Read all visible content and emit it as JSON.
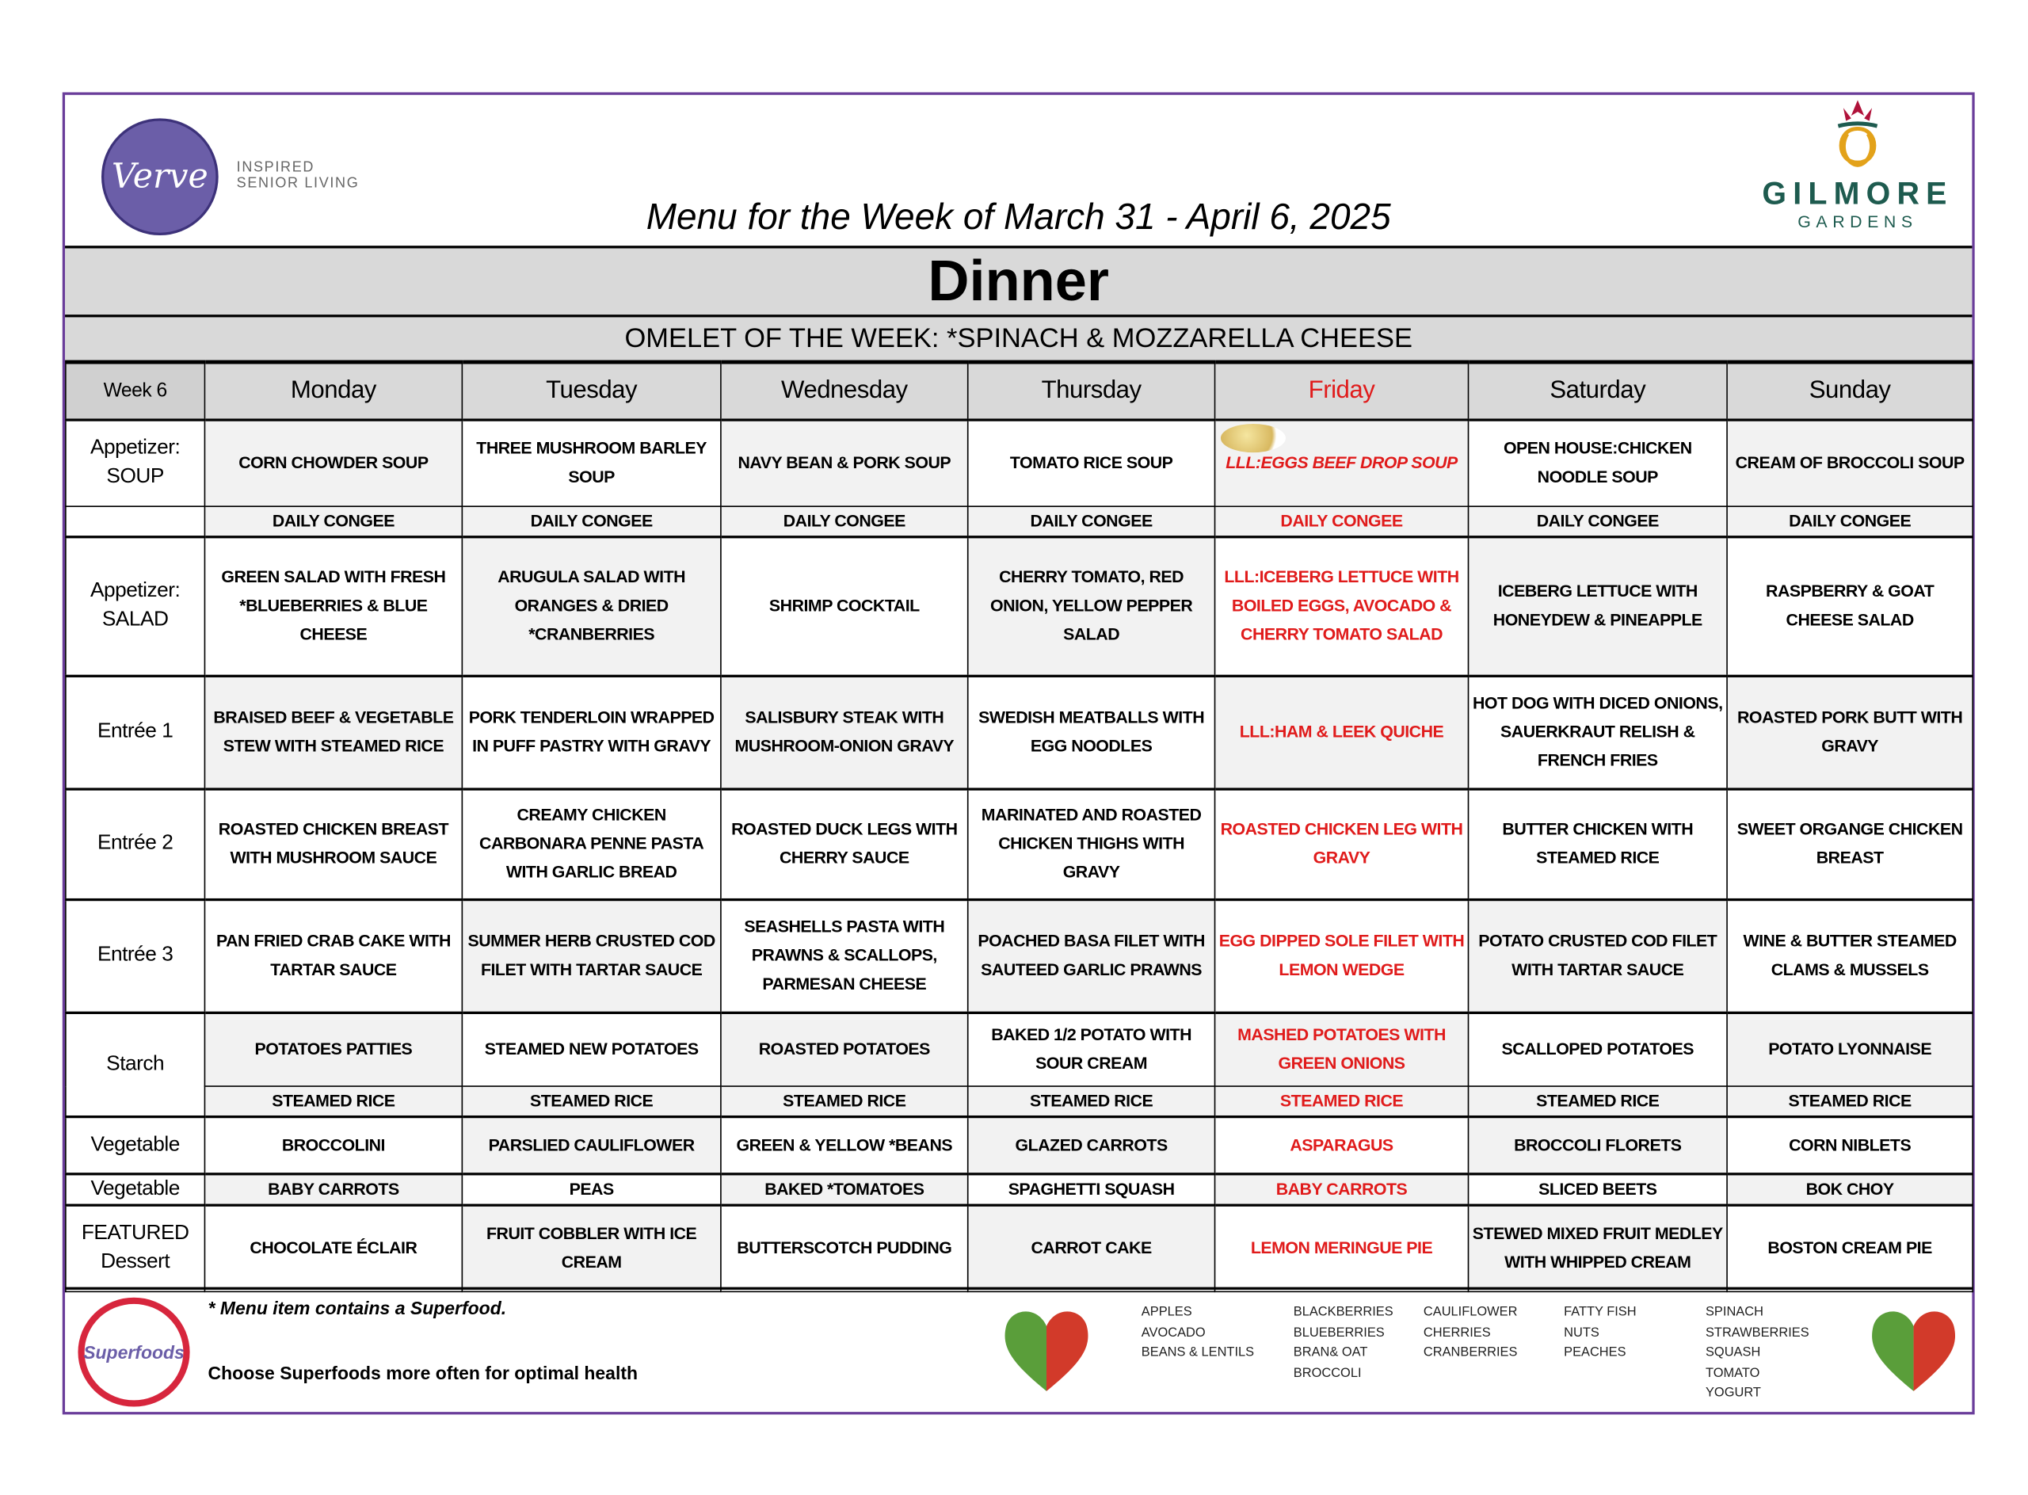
{
  "header": {
    "left_logo": "Verve",
    "left_tagline_1": "INSPIRED",
    "left_tagline_2": "SENIOR LIVING",
    "title": "Menu for the Week of March 31 - April 6, 2025",
    "right_logo_1": "GILMORE",
    "right_logo_2": "GARDENS"
  },
  "meal": "Dinner",
  "omelet": "OMELET OF THE WEEK: *SPINACH & MOZZARELLA CHEESE",
  "colors": {
    "border": "#6a3d9a",
    "highlight": "#e01b1b",
    "header_bg": "#d9d9d9"
  },
  "week_label": "Week 6",
  "days": [
    "Monday",
    "Tuesday",
    "Wednesday",
    "Thursday",
    "Friday",
    "Saturday",
    "Sunday"
  ],
  "highlight_day": "Friday",
  "rows": [
    {
      "label": "Appetizer: SOUP",
      "cells": [
        "CORN CHOWDER SOUP",
        "THREE MUSHROOM BARLEY SOUP",
        "NAVY BEAN & PORK SOUP",
        "TOMATO RICE SOUP",
        "LLL:EGGS BEEF DROP SOUP",
        "OPEN HOUSE:CHICKEN NOODLE SOUP",
        "CREAM OF BROCCOLI SOUP"
      ]
    },
    {
      "label": "",
      "cells": [
        "DAILY CONGEE",
        "DAILY CONGEE",
        "DAILY CONGEE",
        "DAILY CONGEE",
        "DAILY CONGEE",
        "DAILY CONGEE",
        "DAILY CONGEE"
      ]
    },
    {
      "label": "Appetizer: SALAD",
      "cells": [
        "GREEN SALAD WITH FRESH *BLUEBERRIES & BLUE CHEESE",
        "ARUGULA SALAD WITH ORANGES & DRIED *CRANBERRIES",
        "SHRIMP COCKTAIL",
        "CHERRY TOMATO, RED ONION, YELLOW PEPPER SALAD",
        "LLL:ICEBERG LETTUCE WITH BOILED EGGS, AVOCADO & CHERRY TOMATO SALAD",
        "ICEBERG LETTUCE WITH HONEYDEW & PINEAPPLE",
        "RASPBERRY & GOAT CHEESE SALAD"
      ]
    },
    {
      "label": "Entrée 1",
      "cells": [
        "BRAISED BEEF & VEGETABLE STEW WITH STEAMED RICE",
        "PORK TENDERLOIN WRAPPED IN PUFF PASTRY WITH GRAVY",
        "SALISBURY STEAK WITH MUSHROOM-ONION GRAVY",
        "SWEDISH MEATBALLS WITH EGG NOODLES",
        "LLL:HAM & LEEK QUICHE",
        "HOT DOG WITH DICED ONIONS, SAUERKRAUT RELISH & FRENCH FRIES",
        "ROASTED PORK BUTT WITH GRAVY"
      ]
    },
    {
      "label": "Entrée 2",
      "cells": [
        "ROASTED CHICKEN BREAST WITH MUSHROOM SAUCE",
        "CREAMY CHICKEN CARBONARA PENNE PASTA WITH GARLIC BREAD",
        "ROASTED DUCK LEGS WITH CHERRY SAUCE",
        "MARINATED AND ROASTED CHICKEN THIGHS WITH GRAVY",
        "ROASTED CHICKEN LEG WITH GRAVY",
        "BUTTER CHICKEN WITH STEAMED RICE",
        "SWEET ORGANGE CHICKEN BREAST"
      ]
    },
    {
      "label": "Entrée 3",
      "cells": [
        "PAN FRIED CRAB CAKE WITH TARTAR SAUCE",
        "SUMMER HERB CRUSTED COD FILET WITH TARTAR SAUCE",
        "SEASHELLS PASTA WITH PRAWNS & SCALLOPS, PARMESAN CHEESE",
        "POACHED BASA FILET WITH SAUTEED GARLIC PRAWNS",
        "EGG DIPPED SOLE FILET WITH LEMON WEDGE",
        "POTATO CRUSTED COD FILET WITH TARTAR SAUCE",
        "WINE & BUTTER STEAMED CLAMS & MUSSELS"
      ]
    },
    {
      "label": "Starch",
      "cells": [
        "POTATOES PATTIES",
        "STEAMED NEW POTATOES",
        "ROASTED  POTATOES",
        "BAKED 1/2 POTATO WITH SOUR CREAM",
        "MASHED POTATOES WITH GREEN ONIONS",
        "SCALLOPED POTATOES",
        "POTATO LYONNAISE"
      ]
    },
    {
      "label": "",
      "cells": [
        "STEAMED RICE",
        "STEAMED RICE",
        "STEAMED RICE",
        "STEAMED RICE",
        "STEAMED RICE",
        "STEAMED RICE",
        "STEAMED RICE"
      ]
    },
    {
      "label": "Vegetable",
      "cells": [
        "BROCCOLINI",
        "PARSLIED CAULIFLOWER",
        "GREEN & YELLOW *BEANS",
        "GLAZED CARROTS",
        "ASPARAGUS",
        "BROCCOLI FLORETS",
        "CORN NIBLETS"
      ]
    },
    {
      "label": "Vegetable",
      "cells": [
        "BABY CARROTS",
        "PEAS",
        "BAKED *TOMATOES",
        "SPAGHETTI SQUASH",
        "BABY CARROTS",
        "SLICED BEETS",
        "BOK CHOY"
      ]
    },
    {
      "label": "FEATURED Dessert",
      "cells": [
        "CHOCOLATE ÉCLAIR",
        "FRUIT COBBLER WITH ICE CREAM",
        "BUTTERSCOTCH PUDDING",
        "CARROT CAKE",
        "LEMON MERINGUE PIE",
        "STEWED MIXED FRUIT MEDLEY WITH WHIPPED CREAM",
        "BOSTON CREAM PIE"
      ]
    }
  ],
  "footer": {
    "superfoods_logo": "Superfoods",
    "note": "* Menu item contains a Superfood.",
    "tagline": "Choose Superfoods more often for optimal health",
    "superfood_columns": [
      [
        "APPLES",
        "AVOCADO",
        "BEANS & LENTILS"
      ],
      [
        "BLACKBERRIES",
        "BLUEBERRIES",
        "BRAN& OAT",
        "BROCCOLI"
      ],
      [
        "CAULIFLOWER",
        "CHERRIES",
        "CRANBERRIES"
      ],
      [
        "FATTY FISH",
        "NUTS",
        "PEACHES"
      ],
      [
        "SPINACH",
        "STRAWBERRIES",
        "SQUASH",
        "TOMATO",
        "YOGURT"
      ]
    ]
  }
}
